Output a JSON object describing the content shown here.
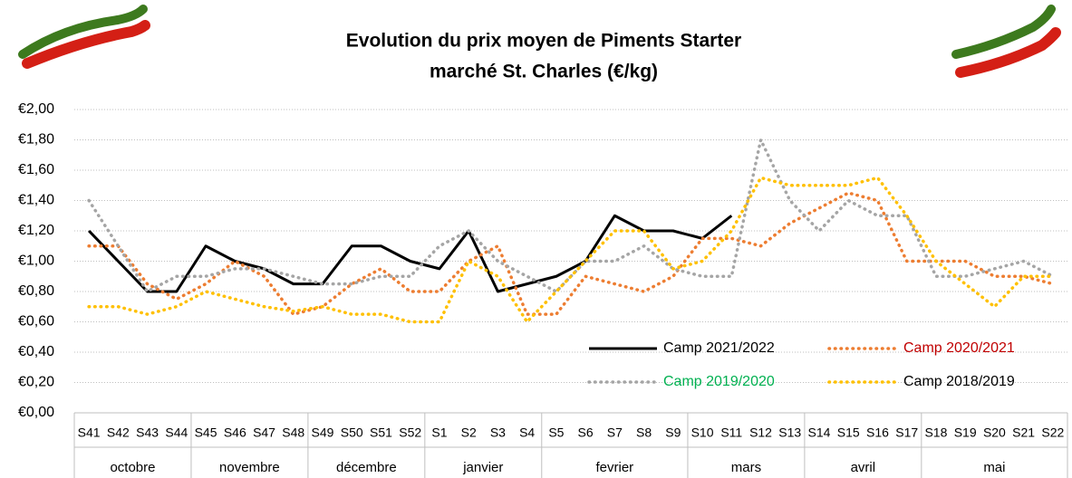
{
  "chart_data": {
    "type": "line",
    "title": "Evolution du prix moyen de Piments Starter",
    "subtitle": "marché St. Charles (€/kg)",
    "categories": [
      "S41",
      "S42",
      "S43",
      "S44",
      "S45",
      "S46",
      "S47",
      "S48",
      "S49",
      "S50",
      "S51",
      "S52",
      "S1",
      "S2",
      "S3",
      "S4",
      "S5",
      "S6",
      "S7",
      "S8",
      "S9",
      "S10",
      "S11",
      "S12",
      "S13",
      "S14",
      "S15",
      "S16",
      "S17",
      "S18",
      "S19",
      "S20",
      "S21",
      "S22"
    ],
    "groups": [
      {
        "label": "octobre",
        "count": 4
      },
      {
        "label": "novembre",
        "count": 4
      },
      {
        "label": "décembre",
        "count": 4
      },
      {
        "label": "janvier",
        "count": 4
      },
      {
        "label": "fevrier",
        "count": 5
      },
      {
        "label": "mars",
        "count": 4
      },
      {
        "label": "avril",
        "count": 4
      },
      {
        "label": "mai",
        "count": 5
      }
    ],
    "series": [
      {
        "name": "Camp 2021/2022",
        "color": "#000000",
        "label_color": "#000000",
        "dotted": false,
        "values": [
          1.2,
          1.0,
          0.8,
          0.8,
          1.1,
          1.0,
          0.95,
          0.85,
          0.85,
          1.1,
          1.1,
          1.0,
          0.95,
          1.2,
          0.8,
          0.85,
          0.9,
          1.0,
          1.3,
          1.2,
          1.2,
          1.15,
          1.3,
          null,
          null,
          null,
          null,
          null,
          null,
          null,
          null,
          null,
          null,
          null
        ]
      },
      {
        "name": "Camp 2020/2021",
        "color": "#ed7d31",
        "label_color": "#c00000",
        "dotted": true,
        "values": [
          1.1,
          1.1,
          0.85,
          0.75,
          0.85,
          1.0,
          0.9,
          0.65,
          0.7,
          0.85,
          0.95,
          0.8,
          0.8,
          1.0,
          1.1,
          0.65,
          0.65,
          0.9,
          0.85,
          0.8,
          0.9,
          1.15,
          1.15,
          1.1,
          1.25,
          1.35,
          1.45,
          1.4,
          1.0,
          1.0,
          1.0,
          0.9,
          0.9,
          0.85
        ]
      },
      {
        "name": "Camp 2019/2020",
        "color": "#a5a5a5",
        "label_color": "#00b050",
        "dotted": true,
        "values": [
          1.4,
          1.1,
          0.8,
          0.9,
          0.9,
          0.95,
          0.95,
          0.9,
          0.85,
          0.85,
          0.9,
          0.9,
          1.1,
          1.2,
          1.0,
          0.9,
          0.8,
          1.0,
          1.0,
          1.1,
          0.95,
          0.9,
          0.9,
          1.8,
          1.4,
          1.2,
          1.4,
          1.3,
          1.3,
          0.9,
          0.9,
          0.95,
          1.0,
          0.9
        ]
      },
      {
        "name": "Camp 2018/2019",
        "color": "#ffc000",
        "label_color": "#000000",
        "dotted": true,
        "values": [
          0.7,
          0.7,
          0.65,
          0.7,
          0.8,
          0.75,
          0.7,
          0.67,
          0.7,
          0.65,
          0.65,
          0.6,
          0.6,
          1.0,
          0.9,
          0.6,
          0.8,
          1.0,
          1.2,
          1.2,
          0.95,
          1.0,
          1.2,
          1.55,
          1.5,
          1.5,
          1.5,
          1.55,
          1.3,
          1.0,
          0.85,
          0.7,
          0.9,
          0.9
        ]
      }
    ],
    "ylim": [
      0,
      2
    ],
    "yticks": [
      {
        "value": 0,
        "label": "€0,00"
      },
      {
        "value": 0.2,
        "label": "€0,20"
      },
      {
        "value": 0.4,
        "label": "€0,40"
      },
      {
        "value": 0.6,
        "label": "€0,60"
      },
      {
        "value": 0.8,
        "label": "€0,80"
      },
      {
        "value": 1,
        "label": "€1,00"
      },
      {
        "value": 1.2,
        "label": "€1,20"
      },
      {
        "value": 1.4,
        "label": "€1,40"
      },
      {
        "value": 1.6,
        "label": "€1,60"
      },
      {
        "value": 1.8,
        "label": "€1,80"
      },
      {
        "value": 2,
        "label": "€2,00"
      }
    ],
    "grid": true
  }
}
